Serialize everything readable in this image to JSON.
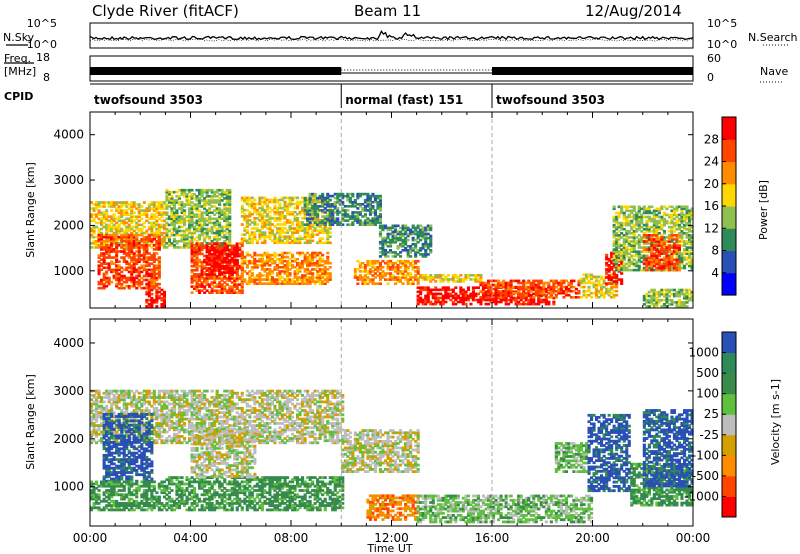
{
  "header": {
    "station": "Clyde River (fitACF)",
    "beam": "Beam 11",
    "date": "12/Aug/2014"
  },
  "left_labels": {
    "nsky": "N.Sky",
    "freq_top": "Freq.",
    "freq_unit": "[MHz]",
    "cpid": "CPID"
  },
  "right_labels": {
    "nsearch": "N.Search",
    "nave": "Nave"
  },
  "cpid_segments": [
    {
      "label": "twofsound 3503",
      "start_h": 0,
      "end_h": 10
    },
    {
      "label": "normal (fast) 151",
      "start_h": 10,
      "end_h": 16
    },
    {
      "label": "twofsound 3503",
      "start_h": 16,
      "end_h": 24
    }
  ],
  "chart_data": [
    {
      "type": "line",
      "panel": "noise",
      "ylabels_left": [
        "10^5",
        "10^0"
      ],
      "ylabels_right": [
        "10^5",
        "10^0"
      ],
      "series": [
        {
          "name": "N.Sky"
        },
        {
          "name": "N.Search"
        }
      ]
    },
    {
      "type": "line",
      "panel": "frequency",
      "ylabels_left": [
        "18",
        "8"
      ],
      "ylabels_right": [
        "60",
        "0"
      ],
      "series": [
        {
          "name": "Freq."
        },
        {
          "name": "Nave"
        }
      ]
    },
    {
      "type": "heatmap",
      "panel": "power",
      "ylabel": "Slant Range [km]",
      "xlim": [
        0,
        24
      ],
      "ylim": [
        180,
        4500
      ],
      "yticks": [
        1000,
        2000,
        3000,
        4000
      ],
      "colorbar": {
        "label": "Power [dB]",
        "ticks": [
          "28",
          "24",
          "20",
          "16",
          "12",
          "8",
          "4"
        ],
        "colors": [
          "#0000ff",
          "#2a4fb5",
          "#2e8b57",
          "#8fbf4f",
          "#ffd700",
          "#ff8c00",
          "#ff4500",
          "#ff0000"
        ]
      },
      "regions": [
        {
          "t0": 0.0,
          "t1": 3.0,
          "r0": 1500,
          "r1": 2500,
          "level": 4
        },
        {
          "t0": 0.3,
          "t1": 2.8,
          "r0": 600,
          "r1": 1800,
          "level": 6
        },
        {
          "t0": 2.2,
          "t1": 3.0,
          "r0": 200,
          "r1": 600,
          "level": 7
        },
        {
          "t0": 3.0,
          "t1": 5.5,
          "r0": 1500,
          "r1": 2800,
          "level": 3
        },
        {
          "t0": 4.0,
          "t1": 6.0,
          "r0": 500,
          "r1": 1600,
          "level": 6
        },
        {
          "t0": 4.6,
          "t1": 5.8,
          "r0": 900,
          "r1": 1500,
          "level": 7
        },
        {
          "t0": 6.0,
          "t1": 9.5,
          "r0": 1600,
          "r1": 2600,
          "level": 4
        },
        {
          "t0": 6.0,
          "t1": 9.5,
          "r0": 700,
          "r1": 1400,
          "level": 5
        },
        {
          "t0": 8.5,
          "t1": 11.5,
          "r0": 2000,
          "r1": 2700,
          "level": 2
        },
        {
          "t0": 10.5,
          "t1": 13.0,
          "r0": 700,
          "r1": 1200,
          "level": 5
        },
        {
          "t0": 11.5,
          "t1": 13.5,
          "r0": 1300,
          "r1": 2000,
          "level": 2
        },
        {
          "t0": 13.0,
          "t1": 15.5,
          "r0": 750,
          "r1": 900,
          "level": 4
        },
        {
          "t0": 13.0,
          "t1": 18.5,
          "r0": 250,
          "r1": 650,
          "level": 7
        },
        {
          "t0": 15.5,
          "t1": 19.5,
          "r0": 400,
          "r1": 800,
          "level": 6
        },
        {
          "t0": 19.5,
          "t1": 21.0,
          "r0": 400,
          "r1": 900,
          "level": 4
        },
        {
          "t0": 20.5,
          "t1": 21.2,
          "r0": 700,
          "r1": 1400,
          "level": 7
        },
        {
          "t0": 20.8,
          "t1": 24.0,
          "r0": 1000,
          "r1": 2400,
          "level": 3
        },
        {
          "t0": 22.0,
          "t1": 23.5,
          "r0": 1000,
          "r1": 1800,
          "level": 6
        },
        {
          "t0": 22.0,
          "t1": 24.0,
          "r0": 200,
          "r1": 600,
          "level": 3
        }
      ]
    },
    {
      "type": "heatmap",
      "panel": "velocity",
      "ylabel": "Slant Range [km]",
      "xlabel": "Time UT",
      "xlim": [
        0,
        24
      ],
      "ylim": [
        180,
        4500
      ],
      "xticks": [
        "00:00",
        "04:00",
        "08:00",
        "12:00",
        "16:00",
        "20:00",
        "00:00"
      ],
      "yticks": [
        1000,
        2000,
        3000,
        4000
      ],
      "colorbar": {
        "label": "Velocity [m s-1]",
        "ticks": [
          "1000",
          "500",
          "100",
          "25",
          "-25",
          "-100",
          "-500",
          "-1000"
        ],
        "colors": [
          "#ff0000",
          "#ff4500",
          "#ff8c00",
          "#d4a000",
          "#bdbdbd",
          "#5fbf3f",
          "#3a8a4a",
          "#2e8b57",
          "#2a4fb5"
        ]
      },
      "regions": [
        {
          "t0": 0.0,
          "t1": 10.0,
          "r0": 1900,
          "r1": 3000,
          "level": 4
        },
        {
          "t0": 0.5,
          "t1": 2.5,
          "r0": 1100,
          "r1": 2500,
          "level": 8
        },
        {
          "t0": 0.0,
          "t1": 3.0,
          "r0": 500,
          "r1": 1100,
          "level": 6
        },
        {
          "t0": 3.0,
          "t1": 10.0,
          "r0": 500,
          "r1": 1200,
          "level": 6
        },
        {
          "t0": 4.0,
          "t1": 6.5,
          "r0": 1200,
          "r1": 2200,
          "level": 4
        },
        {
          "t0": 10.0,
          "t1": 13.0,
          "r0": 1300,
          "r1": 2200,
          "level": 4
        },
        {
          "t0": 11.0,
          "t1": 13.0,
          "r0": 300,
          "r1": 800,
          "level": 2
        },
        {
          "t0": 13.0,
          "t1": 20.0,
          "r0": 250,
          "r1": 800,
          "level": 5
        },
        {
          "t0": 18.5,
          "t1": 19.8,
          "r0": 1300,
          "r1": 1900,
          "level": 5
        },
        {
          "t0": 19.8,
          "t1": 21.5,
          "r0": 900,
          "r1": 2500,
          "level": 8
        },
        {
          "t0": 21.5,
          "t1": 24.0,
          "r0": 600,
          "r1": 1500,
          "level": 6
        },
        {
          "t0": 22.0,
          "t1": 24.0,
          "r0": 1000,
          "r1": 2600,
          "level": 8
        }
      ]
    }
  ]
}
